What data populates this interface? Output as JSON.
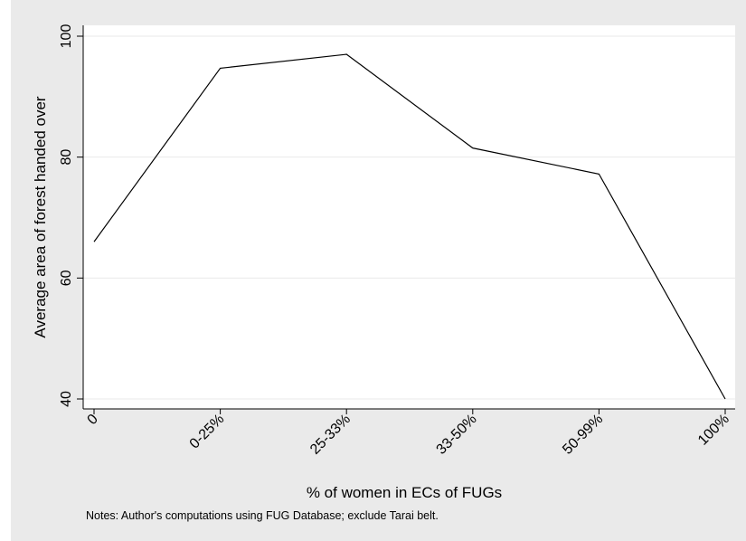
{
  "colors": {
    "panel_bg": "#eaeaea",
    "plot_bg": "#ffffff",
    "line": "#000000",
    "grid": "#e9e9e9"
  },
  "chart_data": {
    "type": "line",
    "title": "",
    "xlabel": "% of women in ECs of FUGs",
    "ylabel": "Average area of forest handed over",
    "categories": [
      "0",
      "0-25%",
      "25-33%",
      "33-50%",
      "50-99%",
      "100%"
    ],
    "series": [
      {
        "values": [
          66,
          94.7,
          97,
          81.5,
          77.2,
          40
        ]
      }
    ],
    "yticks": [
      40,
      60,
      80,
      100
    ],
    "ylim": [
      40,
      100
    ],
    "grid": true,
    "legend": "none",
    "note": "Notes: Author's computations using FUG Database; exclude Tarai belt."
  }
}
